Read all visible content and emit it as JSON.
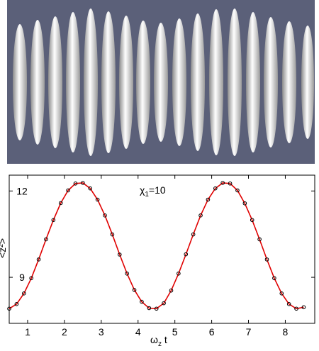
{
  "chart_data": {
    "type": "line",
    "annotation": {
      "symbol": "χ",
      "sub": "1",
      "rest": "=10"
    },
    "x_label": {
      "symbol": "ω",
      "sub": "z",
      "rest": " t"
    },
    "y_label": "<z̃²>",
    "x": [
      0.5,
      0.7,
      0.9,
      1.1,
      1.3,
      1.5,
      1.7,
      1.9,
      2.1,
      2.3,
      2.5,
      2.7,
      2.9,
      3.1,
      3.3,
      3.5,
      3.7,
      3.9,
      4.1,
      4.3,
      4.5,
      4.7,
      4.9,
      5.1,
      5.3,
      5.5,
      5.7,
      5.9,
      6.1,
      6.3,
      6.5,
      6.7,
      6.9,
      7.1,
      7.3,
      7.5,
      7.7,
      7.9,
      8.1,
      8.3,
      8.5
    ],
    "values": [
      7.91,
      8.07,
      8.44,
      8.97,
      9.62,
      10.32,
      10.99,
      11.58,
      12.02,
      12.26,
      12.28,
      12.09,
      11.7,
      11.15,
      10.49,
      9.79,
      9.13,
      8.56,
      8.15,
      7.93,
      7.91,
      8.1,
      8.54,
      9.13,
      9.8,
      10.49,
      11.15,
      11.7,
      12.09,
      12.28,
      12.26,
      12.02,
      11.57,
      10.99,
      10.32,
      9.62,
      8.97,
      8.44,
      8.07,
      7.91,
      7.96
    ],
    "line_color": "#e00000",
    "marker": "open-circle",
    "marker_color": "#000000",
    "xlim": [
      0.5,
      8.8
    ],
    "ylim": [
      7.4,
      12.55
    ],
    "xticks": [
      1,
      2,
      3,
      4,
      5,
      6,
      7,
      8
    ],
    "yticks": [
      9,
      12
    ]
  }
}
